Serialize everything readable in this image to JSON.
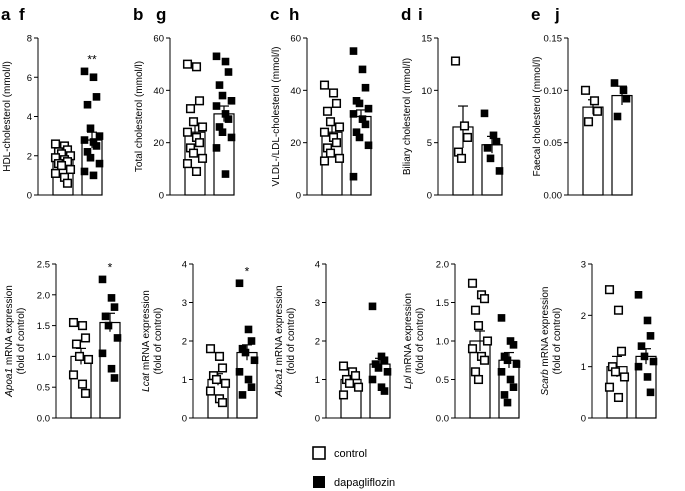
{
  "legend": {
    "control": "control",
    "dapagliflozin": "dapagliflozin"
  },
  "chart_data": [
    {
      "panel": "a",
      "type": "bar-scatter",
      "ylabel": "HDL-cholesterol (mmol/l)",
      "ylim": [
        0,
        8
      ],
      "yticks": [
        0,
        2,
        4,
        6,
        8
      ],
      "series": [
        {
          "name": "control",
          "mean": 1.8,
          "sem": 0.15,
          "points": [
            2.6,
            2.5,
            2.3,
            2.2,
            2.1,
            2.0,
            1.9,
            1.8,
            1.7,
            1.6,
            1.5,
            1.3,
            1.1,
            0.9,
            0.6
          ]
        },
        {
          "name": "dapagliflozin",
          "mean": 2.8,
          "sem": 0.4,
          "points": [
            6.3,
            6.0,
            5.0,
            4.6,
            3.4,
            3.0,
            2.8,
            2.7,
            2.5,
            2.2,
            1.9,
            1.6,
            1.2,
            1.0
          ]
        }
      ],
      "annotation": "**"
    },
    {
      "panel": "b",
      "type": "bar-scatter",
      "ylabel": "Total cholesterol (mmol/l)",
      "ylim": [
        0,
        60
      ],
      "yticks": [
        0,
        20,
        40,
        60
      ],
      "series": [
        {
          "name": "control",
          "mean": 24,
          "sem": 3,
          "points": [
            50,
            49,
            36,
            33,
            28,
            26,
            24,
            22,
            20,
            18,
            16,
            14,
            12,
            9
          ]
        },
        {
          "name": "dapagliflozin",
          "mean": 31,
          "sem": 3,
          "points": [
            53,
            51,
            47,
            42,
            38,
            36,
            34,
            31,
            29,
            26,
            24,
            22,
            18,
            8
          ]
        }
      ],
      "annotation": ""
    },
    {
      "panel": "c",
      "type": "bar-scatter",
      "ylabel": "VLDL-/LDL-cholesterol (mmol/l)",
      "ylim": [
        0,
        60
      ],
      "yticks": [
        0,
        20,
        40,
        60
      ],
      "series": [
        {
          "name": "control",
          "mean": 24,
          "sem": 3,
          "points": [
            42,
            39,
            35,
            32,
            28,
            26,
            24,
            22,
            20,
            18,
            16,
            14,
            13
          ]
        },
        {
          "name": "dapagliflozin",
          "mean": 30,
          "sem": 2.5,
          "points": [
            55,
            48,
            41,
            36,
            35,
            33,
            31,
            29,
            27,
            24,
            22,
            19,
            7
          ]
        }
      ],
      "annotation": ""
    },
    {
      "panel": "d",
      "type": "bar-scatter",
      "ylabel": "Biliary cholesterol (mmol/l)",
      "ylim": [
        0,
        15
      ],
      "yticks": [
        0,
        5,
        10,
        15
      ],
      "series": [
        {
          "name": "control",
          "mean": 6.5,
          "sem": 2,
          "points": [
            12.8,
            6.6,
            5.5,
            4.1,
            3.5
          ]
        },
        {
          "name": "dapagliflozin",
          "mean": 4.8,
          "sem": 0.8,
          "points": [
            7.8,
            5.7,
            5.1,
            4.5,
            3.5,
            2.3
          ]
        }
      ],
      "annotation": ""
    },
    {
      "panel": "e",
      "type": "bar-scatter",
      "ylabel": "Faecal cholesterol (mmol/l)",
      "ylim": [
        0,
        0.15
      ],
      "yticks": [
        0.0,
        0.05,
        0.1,
        0.15
      ],
      "series": [
        {
          "name": "control",
          "mean": 0.084,
          "sem": 0.007,
          "points": [
            0.1,
            0.09,
            0.08,
            0.07
          ]
        },
        {
          "name": "dapagliflozin",
          "mean": 0.095,
          "sem": 0.009,
          "points": [
            0.107,
            0.1,
            0.092,
            0.075
          ]
        }
      ],
      "annotation": ""
    },
    {
      "panel": "f",
      "type": "bar-scatter",
      "ylabel_gene": "Apoa1",
      "ylabel": "mRNA expression",
      "ylabel2": "(fold of control)",
      "ylim": [
        0,
        2.5
      ],
      "yticks": [
        0.0,
        0.5,
        1.0,
        1.5,
        2.0,
        2.5
      ],
      "series": [
        {
          "name": "control",
          "mean": 1.0,
          "sem": 0.13,
          "points": [
            1.55,
            1.5,
            1.3,
            1.2,
            1.0,
            0.95,
            0.7,
            0.55,
            0.4
          ]
        },
        {
          "name": "dapagliflozin",
          "mean": 1.55,
          "sem": 0.15,
          "points": [
            2.25,
            1.95,
            1.8,
            1.65,
            1.5,
            1.3,
            1.05,
            0.8,
            0.65
          ]
        }
      ],
      "annotation": "*"
    },
    {
      "panel": "g",
      "type": "bar-scatter",
      "ylabel_gene": "Lcat",
      "ylabel": "mRNA expression",
      "ylabel2": "(fold of control)",
      "ylim": [
        0,
        4
      ],
      "yticks": [
        0,
        1,
        2,
        3,
        4
      ],
      "series": [
        {
          "name": "control",
          "mean": 1.0,
          "sem": 0.15,
          "points": [
            1.8,
            1.6,
            1.3,
            1.1,
            1.0,
            0.9,
            0.7,
            0.5,
            0.4
          ]
        },
        {
          "name": "dapagliflozin",
          "mean": 1.7,
          "sem": 0.2,
          "points": [
            3.5,
            2.3,
            2.0,
            1.8,
            1.7,
            1.5,
            1.2,
            1.0,
            0.8,
            0.6
          ]
        }
      ],
      "annotation": "*"
    },
    {
      "panel": "h",
      "type": "bar-scatter",
      "ylabel_gene": "Abca1",
      "ylabel": "mRNA expression",
      "ylabel2": "(fold of control)",
      "ylim": [
        0,
        4
      ],
      "yticks": [
        0,
        1,
        2,
        3,
        4
      ],
      "series": [
        {
          "name": "control",
          "mean": 1.0,
          "sem": 0.1,
          "points": [
            1.35,
            1.2,
            1.1,
            1.0,
            0.9,
            0.8,
            0.6
          ]
        },
        {
          "name": "dapagliflozin",
          "mean": 1.4,
          "sem": 0.15,
          "points": [
            2.9,
            1.6,
            1.5,
            1.4,
            1.3,
            1.2,
            1.0,
            0.8,
            0.7
          ]
        }
      ],
      "annotation": ""
    },
    {
      "panel": "i",
      "type": "bar-scatter",
      "ylabel_gene": "Lpl",
      "ylabel": "mRNA expression",
      "ylabel2": "(fold of control)",
      "ylim": [
        0,
        2.0
      ],
      "yticks": [
        0.0,
        0.5,
        1.0,
        1.5,
        2.0
      ],
      "series": [
        {
          "name": "control",
          "mean": 1.0,
          "sem": 0.13,
          "points": [
            1.75,
            1.6,
            1.55,
            1.4,
            1.2,
            1.0,
            0.9,
            0.8,
            0.75,
            0.6,
            0.5
          ]
        },
        {
          "name": "dapagliflozin",
          "mean": 0.75,
          "sem": 0.1,
          "points": [
            1.3,
            1.0,
            0.95,
            0.8,
            0.75,
            0.7,
            0.6,
            0.5,
            0.4,
            0.3,
            0.2
          ]
        }
      ],
      "annotation": ""
    },
    {
      "panel": "j",
      "type": "bar-scatter",
      "ylabel_gene": "Scarb",
      "ylabel": "mRNA expression",
      "ylabel2": "(fold of control)",
      "ylim": [
        0,
        3
      ],
      "yticks": [
        0,
        1,
        2,
        3
      ],
      "series": [
        {
          "name": "control",
          "mean": 1.0,
          "sem": 0.2,
          "points": [
            2.5,
            2.1,
            1.3,
            1.0,
            0.9,
            0.8,
            0.6,
            0.4
          ]
        },
        {
          "name": "dapagliflozin",
          "mean": 1.2,
          "sem": 0.15,
          "points": [
            2.4,
            1.9,
            1.6,
            1.4,
            1.2,
            1.1,
            1.0,
            0.8,
            0.5
          ]
        }
      ],
      "annotation": ""
    }
  ]
}
